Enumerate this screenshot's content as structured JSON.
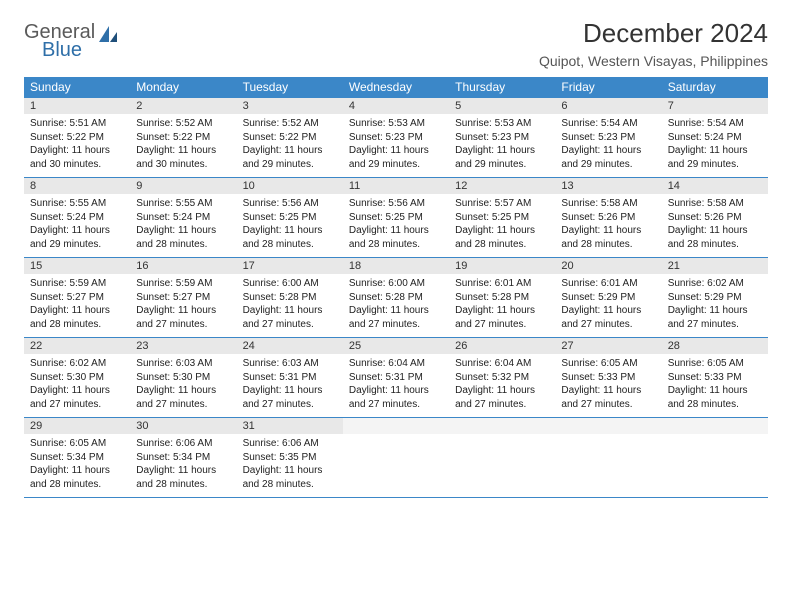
{
  "logo": {
    "word1": "General",
    "word2": "Blue"
  },
  "title": "December 2024",
  "location": "Quipot, Western Visayas, Philippines",
  "colors": {
    "header_bg": "#3b87c8",
    "header_text": "#ffffff",
    "daynum_bg": "#e8e8e8",
    "rule": "#3b87c8",
    "logo_gray": "#5a5a5a",
    "logo_blue": "#2f6fa8"
  },
  "day_headers": [
    "Sunday",
    "Monday",
    "Tuesday",
    "Wednesday",
    "Thursday",
    "Friday",
    "Saturday"
  ],
  "weeks": [
    [
      {
        "n": "1",
        "sr": "5:51 AM",
        "ss": "5:22 PM",
        "dl": "11 hours and 30 minutes."
      },
      {
        "n": "2",
        "sr": "5:52 AM",
        "ss": "5:22 PM",
        "dl": "11 hours and 30 minutes."
      },
      {
        "n": "3",
        "sr": "5:52 AM",
        "ss": "5:22 PM",
        "dl": "11 hours and 29 minutes."
      },
      {
        "n": "4",
        "sr": "5:53 AM",
        "ss": "5:23 PM",
        "dl": "11 hours and 29 minutes."
      },
      {
        "n": "5",
        "sr": "5:53 AM",
        "ss": "5:23 PM",
        "dl": "11 hours and 29 minutes."
      },
      {
        "n": "6",
        "sr": "5:54 AM",
        "ss": "5:23 PM",
        "dl": "11 hours and 29 minutes."
      },
      {
        "n": "7",
        "sr": "5:54 AM",
        "ss": "5:24 PM",
        "dl": "11 hours and 29 minutes."
      }
    ],
    [
      {
        "n": "8",
        "sr": "5:55 AM",
        "ss": "5:24 PM",
        "dl": "11 hours and 29 minutes."
      },
      {
        "n": "9",
        "sr": "5:55 AM",
        "ss": "5:24 PM",
        "dl": "11 hours and 28 minutes."
      },
      {
        "n": "10",
        "sr": "5:56 AM",
        "ss": "5:25 PM",
        "dl": "11 hours and 28 minutes."
      },
      {
        "n": "11",
        "sr": "5:56 AM",
        "ss": "5:25 PM",
        "dl": "11 hours and 28 minutes."
      },
      {
        "n": "12",
        "sr": "5:57 AM",
        "ss": "5:25 PM",
        "dl": "11 hours and 28 minutes."
      },
      {
        "n": "13",
        "sr": "5:58 AM",
        "ss": "5:26 PM",
        "dl": "11 hours and 28 minutes."
      },
      {
        "n": "14",
        "sr": "5:58 AM",
        "ss": "5:26 PM",
        "dl": "11 hours and 28 minutes."
      }
    ],
    [
      {
        "n": "15",
        "sr": "5:59 AM",
        "ss": "5:27 PM",
        "dl": "11 hours and 28 minutes."
      },
      {
        "n": "16",
        "sr": "5:59 AM",
        "ss": "5:27 PM",
        "dl": "11 hours and 27 minutes."
      },
      {
        "n": "17",
        "sr": "6:00 AM",
        "ss": "5:28 PM",
        "dl": "11 hours and 27 minutes."
      },
      {
        "n": "18",
        "sr": "6:00 AM",
        "ss": "5:28 PM",
        "dl": "11 hours and 27 minutes."
      },
      {
        "n": "19",
        "sr": "6:01 AM",
        "ss": "5:28 PM",
        "dl": "11 hours and 27 minutes."
      },
      {
        "n": "20",
        "sr": "6:01 AM",
        "ss": "5:29 PM",
        "dl": "11 hours and 27 minutes."
      },
      {
        "n": "21",
        "sr": "6:02 AM",
        "ss": "5:29 PM",
        "dl": "11 hours and 27 minutes."
      }
    ],
    [
      {
        "n": "22",
        "sr": "6:02 AM",
        "ss": "5:30 PM",
        "dl": "11 hours and 27 minutes."
      },
      {
        "n": "23",
        "sr": "6:03 AM",
        "ss": "5:30 PM",
        "dl": "11 hours and 27 minutes."
      },
      {
        "n": "24",
        "sr": "6:03 AM",
        "ss": "5:31 PM",
        "dl": "11 hours and 27 minutes."
      },
      {
        "n": "25",
        "sr": "6:04 AM",
        "ss": "5:31 PM",
        "dl": "11 hours and 27 minutes."
      },
      {
        "n": "26",
        "sr": "6:04 AM",
        "ss": "5:32 PM",
        "dl": "11 hours and 27 minutes."
      },
      {
        "n": "27",
        "sr": "6:05 AM",
        "ss": "5:33 PM",
        "dl": "11 hours and 27 minutes."
      },
      {
        "n": "28",
        "sr": "6:05 AM",
        "ss": "5:33 PM",
        "dl": "11 hours and 28 minutes."
      }
    ],
    [
      {
        "n": "29",
        "sr": "6:05 AM",
        "ss": "5:34 PM",
        "dl": "11 hours and 28 minutes."
      },
      {
        "n": "30",
        "sr": "6:06 AM",
        "ss": "5:34 PM",
        "dl": "11 hours and 28 minutes."
      },
      {
        "n": "31",
        "sr": "6:06 AM",
        "ss": "5:35 PM",
        "dl": "11 hours and 28 minutes."
      },
      null,
      null,
      null,
      null
    ]
  ],
  "labels": {
    "sunrise": "Sunrise:",
    "sunset": "Sunset:",
    "daylight": "Daylight:"
  }
}
